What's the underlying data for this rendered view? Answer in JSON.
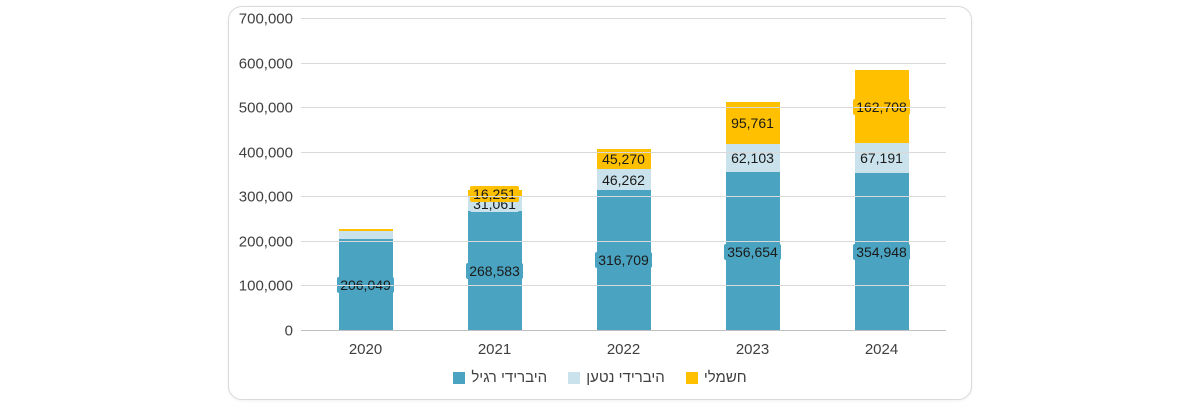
{
  "chart_data": {
    "type": "bar",
    "stacked": true,
    "title": "",
    "categories": [
      "2020",
      "2021",
      "2022",
      "2023",
      "2024"
    ],
    "series": [
      {
        "name": "היברידי רגיל",
        "color": "#4AA3C0",
        "values": [
          206049,
          268583,
          316709,
          356654,
          354948
        ],
        "labels": [
          "206,049",
          "268,583",
          "316,709",
          "356,654",
          "354,948"
        ]
      },
      {
        "name": "היברידי נטען",
        "color": "#C9E2EC",
        "values": [
          18400,
          31061,
          46262,
          62103,
          67191
        ],
        "labels": [
          "",
          "31,061",
          "46,262",
          "62,103",
          "67,191"
        ]
      },
      {
        "name": "חשמלי",
        "color": "#FFC000",
        "values": [
          4500,
          16251,
          45270,
          95761,
          162708
        ],
        "labels": [
          "",
          "16,251",
          "45,270",
          "95,761",
          "162,708"
        ]
      }
    ],
    "ylim": [
      0,
      700000
    ],
    "ytick_step": 100000,
    "ytick_labels": [
      "0",
      "100,000",
      "200,000",
      "300,000",
      "400,000",
      "500,000",
      "600,000",
      "700,000"
    ],
    "grid": true,
    "legend_position": "bottom"
  },
  "legend": {
    "items": [
      {
        "label": "היברידי רגיל",
        "color": "#4AA3C0"
      },
      {
        "label": "היברידי נטען",
        "color": "#C9E2EC"
      },
      {
        "label": "חשמלי",
        "color": "#FFC000"
      }
    ]
  },
  "colors": {
    "panel_border": "#d9d9d9",
    "gridline": "#d9d9d9",
    "axis_line": "#bfbfbf",
    "axis_text": "#404040",
    "data_label_text": "#1a1a1a"
  }
}
